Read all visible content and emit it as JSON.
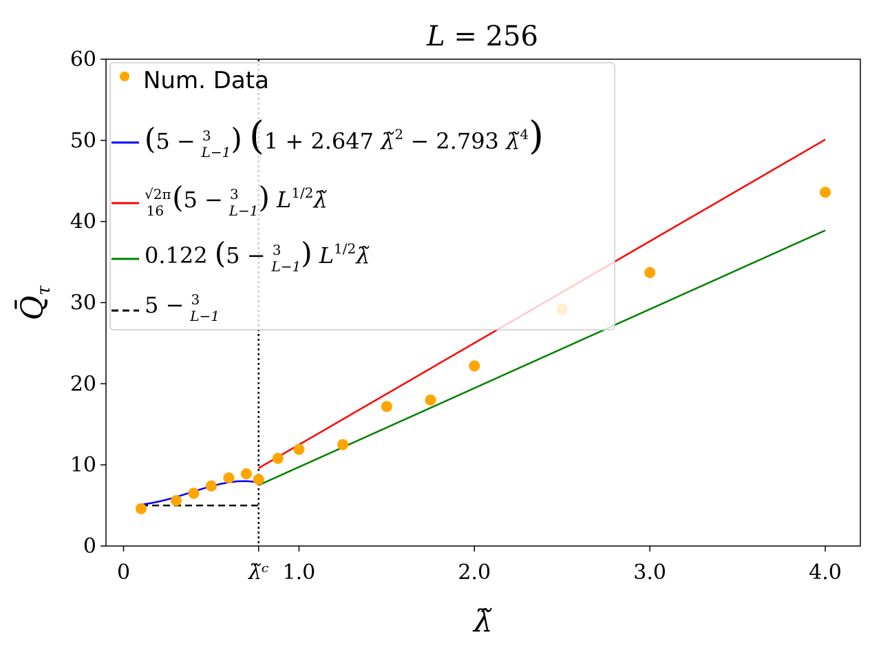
{
  "chart_data": {
    "type": "line",
    "title": "L = 256",
    "xlabel": "λ̃",
    "ylabel": "Q̄_τ",
    "xlim": [
      -0.1,
      4.2
    ],
    "ylim": [
      0,
      60
    ],
    "x_ticks": [
      {
        "value": 0,
        "label": "0"
      },
      {
        "value": 0.77,
        "label": "λ̃ᶜ"
      },
      {
        "value": 1.0,
        "label": "1.0"
      },
      {
        "value": 2.0,
        "label": "2.0"
      },
      {
        "value": 3.0,
        "label": "3.0"
      },
      {
        "value": 4.0,
        "label": "4.0"
      }
    ],
    "y_ticks": [
      {
        "value": 0,
        "label": "0"
      },
      {
        "value": 10,
        "label": "10"
      },
      {
        "value": 20,
        "label": "20"
      },
      {
        "value": 30,
        "label": "30"
      },
      {
        "value": 40,
        "label": "40"
      },
      {
        "value": 50,
        "label": "50"
      },
      {
        "value": 60,
        "label": "60"
      }
    ],
    "grid": false,
    "legend_position": "top-left",
    "critical_line_x": 0.77,
    "series": [
      {
        "name": "Num. Data",
        "kind": "scatter",
        "color": "#ffa500",
        "x": [
          0.1,
          0.3,
          0.4,
          0.5,
          0.6,
          0.7,
          0.77,
          0.88,
          1.0,
          1.25,
          1.5,
          1.75,
          2.0,
          2.5,
          3.0,
          4.0
        ],
        "y": [
          4.6,
          5.6,
          6.5,
          7.4,
          8.4,
          8.9,
          8.2,
          10.8,
          11.9,
          12.5,
          17.2,
          18.0,
          22.2,
          29.2,
          33.7,
          43.6
        ]
      },
      {
        "name": "(5 − 3/(L−1)) (1 + 2.647 λ̃² − 2.793 λ̃⁴)",
        "kind": "line",
        "color": "#0000ff",
        "x": [
          0.1,
          0.15,
          0.2,
          0.25,
          0.3,
          0.35,
          0.4,
          0.45,
          0.5,
          0.55,
          0.6,
          0.65,
          0.7,
          0.75,
          0.77
        ],
        "y": [
          5.1,
          5.26,
          5.47,
          5.74,
          6.04,
          6.38,
          6.72,
          7.06,
          7.37,
          7.64,
          7.85,
          7.98,
          8.0,
          7.9,
          7.8
        ]
      },
      {
        "name": "(√(2π)/16) (5 − 3/(L−1)) L^{1/2} λ̃",
        "kind": "line",
        "color": "#ff0000",
        "x": [
          0.77,
          4.0
        ],
        "y": [
          9.6,
          50.1
        ]
      },
      {
        "name": "0.122 (5 − 3/(L−1)) L^{1/2} λ̃",
        "kind": "line",
        "color": "#008000",
        "x": [
          0.77,
          4.0
        ],
        "y": [
          7.5,
          38.9
        ]
      },
      {
        "name": "5 − 3/(L−1)",
        "kind": "dashed",
        "color": "#000000",
        "x": [
          0.1,
          0.77
        ],
        "y": [
          5.0,
          5.0
        ]
      }
    ]
  }
}
